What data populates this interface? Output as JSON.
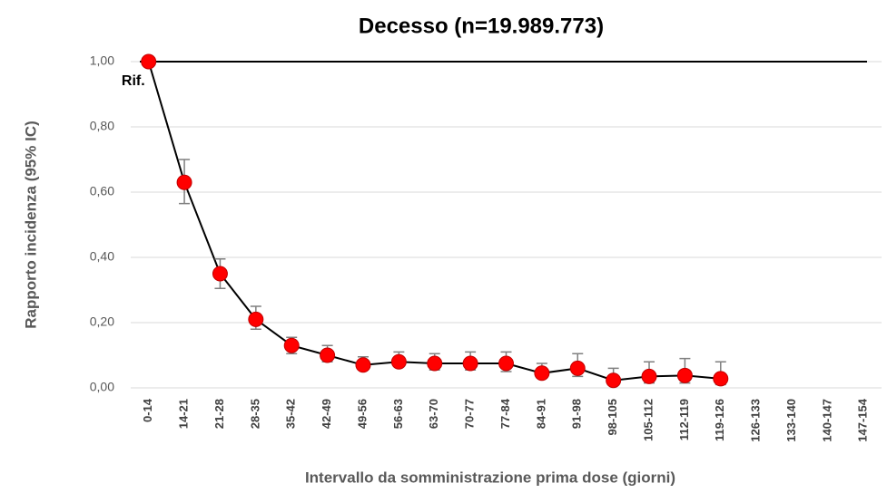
{
  "chart_data": {
    "type": "line",
    "title": "Decesso (n=19.989.773)",
    "x_label": "Intervallo da somministrazione prima dose (giorni)",
    "y_label": "Rapporto incidenza (95% IC)",
    "categories": [
      "0-14",
      "14-21",
      "21-28",
      "28-35",
      "35-42",
      "42-49",
      "49-56",
      "56-63",
      "63-70",
      "70-77",
      "77-84",
      "84-91",
      "91-98",
      "98-105",
      "105-112",
      "112-119",
      "119-126",
      "126-133",
      "133-140",
      "140-147",
      "147-154"
    ],
    "series": [
      {
        "color": "#ff0000",
        "values": [
          1.0,
          0.63,
          0.35,
          0.21,
          0.13,
          0.1,
          0.07,
          0.08,
          0.075,
          0.075,
          0.075,
          0.045,
          0.06,
          0.023,
          0.035,
          0.038,
          0.028,
          null,
          null,
          null,
          null
        ],
        "ci_low": [
          null,
          0.565,
          0.305,
          0.18,
          0.105,
          0.08,
          0.055,
          0.065,
          0.055,
          0.055,
          0.05,
          0.03,
          0.035,
          0.01,
          0.015,
          0.015,
          0.01,
          null,
          null,
          null,
          null
        ],
        "ci_high": [
          null,
          0.7,
          0.395,
          0.25,
          0.155,
          0.13,
          0.095,
          0.11,
          0.105,
          0.11,
          0.11,
          0.075,
          0.105,
          0.06,
          0.08,
          0.09,
          0.08,
          null,
          null,
          null,
          null
        ]
      }
    ],
    "ylim": [
      0,
      1
    ],
    "yticks": [
      {
        "value": 0,
        "label": "0,00"
      },
      {
        "value": 0.2,
        "label": "0,20"
      },
      {
        "value": 0.4,
        "label": "0,40"
      },
      {
        "value": 0.6,
        "label": "0,60"
      },
      {
        "value": 0.8,
        "label": "0,80"
      },
      {
        "value": 1,
        "label": "1,00"
      }
    ],
    "grid": true,
    "reference_line": {
      "value": 1,
      "label": "Rif."
    }
  }
}
